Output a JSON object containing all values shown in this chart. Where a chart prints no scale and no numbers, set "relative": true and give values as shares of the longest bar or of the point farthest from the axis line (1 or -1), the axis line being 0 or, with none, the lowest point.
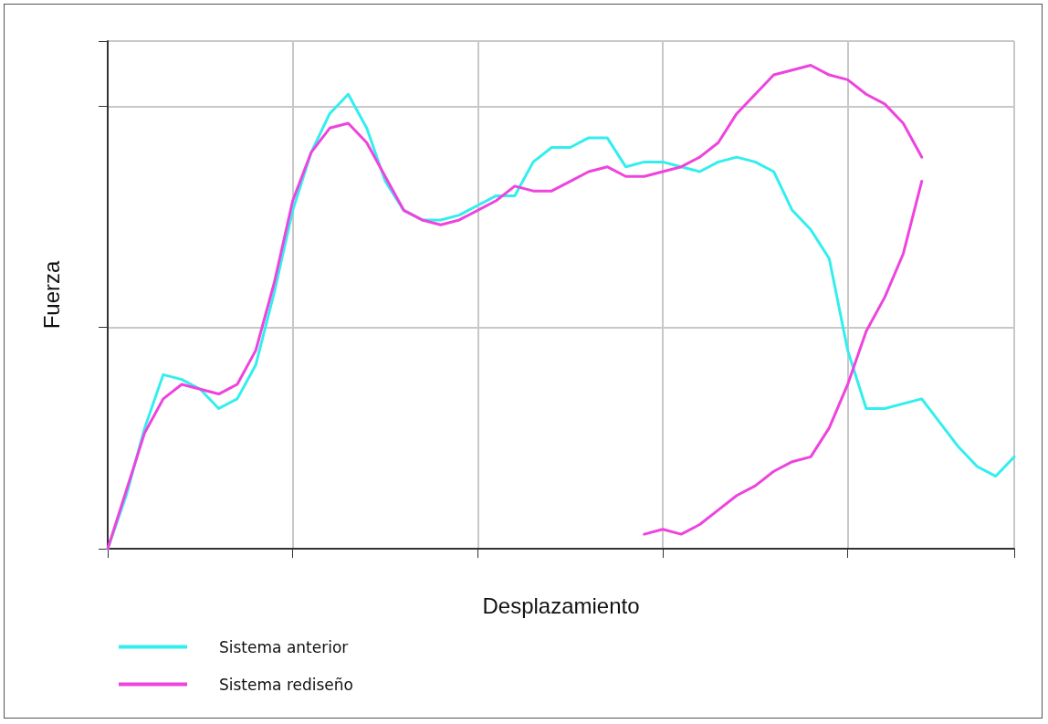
{
  "chart_data": {
    "type": "line",
    "relative": true,
    "xlabel": "Desplazamiento",
    "ylabel": "Fuerza",
    "categories": [
      null,
      null,
      null,
      null,
      null,
      null,
      null,
      null,
      null,
      null,
      null,
      null,
      null,
      null,
      null,
      null,
      null,
      null,
      null,
      null,
      null,
      null,
      null,
      null,
      null,
      null,
      null,
      null,
      null,
      null,
      null,
      null,
      null,
      null,
      null,
      null,
      null,
      null,
      null,
      null,
      null,
      null,
      null,
      null,
      null,
      null,
      null,
      null,
      null,
      null
    ],
    "grid": true,
    "legend": "bottom left",
    "marker": "none",
    "line_style": "solid",
    "series": [
      {
        "name": "Sistema anterior",
        "color": "#33eeee",
        "values": [
          0,
          0.11,
          0.25,
          0.36,
          0.35,
          0.33,
          0.29,
          0.31,
          0.38,
          0.53,
          0.7,
          0.82,
          0.9,
          0.94,
          0.87,
          0.76,
          0.7,
          0.68,
          0.68,
          0.69,
          0.71,
          0.73,
          0.73,
          0.8,
          0.83,
          0.83,
          0.85,
          0.85,
          0.79,
          0.8,
          0.8,
          0.79,
          0.78,
          0.8,
          0.81,
          0.8,
          0.78,
          0.7,
          0.66,
          0.6,
          0.41,
          0.29,
          0.29,
          0.3,
          0.31,
          0.26,
          0.21,
          0.17,
          0.15,
          0.19
        ]
      },
      {
        "name": "Sistema rediseño",
        "color": "#ee44dd",
        "values": [
          0,
          0.12,
          0.24,
          0.31,
          0.34,
          0.33,
          0.32,
          0.34,
          0.41,
          0.55,
          0.72,
          0.82,
          0.87,
          0.88,
          0.84,
          0.77,
          0.7,
          0.68,
          0.67,
          0.68,
          0.7,
          0.72,
          0.75,
          0.74,
          0.74,
          0.76,
          0.78,
          0.79,
          0.77,
          0.77,
          0.78,
          0.79,
          0.81,
          0.84,
          0.9,
          0.94,
          0.98,
          0.99,
          1,
          0.98,
          0.97,
          0.94,
          0.92,
          0.88,
          0.81,
          null,
          null,
          null,
          null,
          null
        ]
      },
      {
        "color": "#ee44dd",
        "values": [
          null,
          null,
          null,
          null,
          null,
          null,
          null,
          null,
          null,
          null,
          null,
          null,
          null,
          null,
          null,
          null,
          null,
          null,
          null,
          null,
          null,
          null,
          null,
          null,
          null,
          null,
          null,
          null,
          null,
          0.03,
          0.04,
          0.03,
          0.05,
          0.08,
          0.11,
          0.13,
          0.16,
          0.18,
          0.19,
          0.25,
          0.34,
          0.45,
          0.52,
          0.61,
          0.76,
          null,
          null,
          null,
          null,
          null
        ]
      }
    ]
  }
}
